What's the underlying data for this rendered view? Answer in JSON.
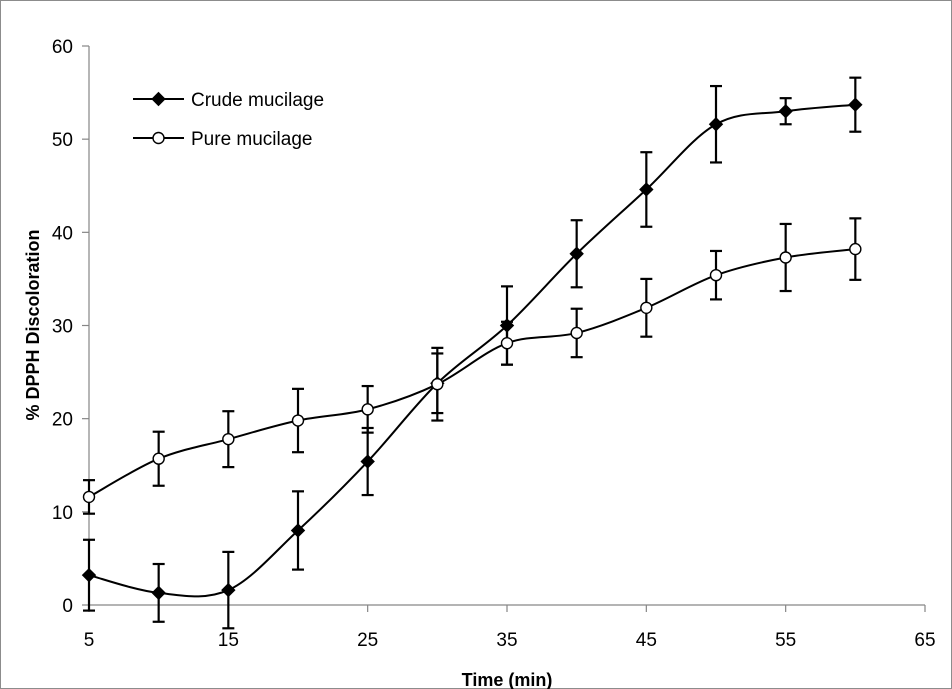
{
  "chart_data": {
    "type": "line",
    "xlabel": "Time (min)",
    "ylabel": "% DPPH Discoloration",
    "xlim": [
      5,
      65
    ],
    "ylim": [
      0,
      60
    ],
    "x_ticks": [
      "5",
      "15",
      "25",
      "35",
      "45",
      "55",
      "65"
    ],
    "y_ticks": [
      "0",
      "10",
      "20",
      "30",
      "40",
      "50",
      "60"
    ],
    "grid": false,
    "legend_position": "top-left",
    "series": [
      {
        "name": "Crude mucilage",
        "marker": "filled-diamond",
        "x": [
          5,
          10,
          15,
          20,
          25,
          30,
          35,
          40,
          45,
          50,
          55,
          60
        ],
        "values": [
          3.2,
          1.3,
          1.6,
          8.0,
          15.4,
          23.8,
          30.0,
          37.7,
          44.6,
          51.6,
          53.0,
          53.7
        ],
        "error": [
          3.8,
          3.1,
          4.1,
          4.2,
          3.6,
          3.2,
          4.2,
          3.6,
          4.0,
          4.1,
          1.4,
          2.9
        ]
      },
      {
        "name": "Pure mucilage",
        "marker": "open-circle",
        "x": [
          5,
          10,
          15,
          20,
          25,
          30,
          35,
          40,
          45,
          50,
          55,
          60
        ],
        "values": [
          11.6,
          15.7,
          17.8,
          19.8,
          21.0,
          23.7,
          28.1,
          29.2,
          31.9,
          35.4,
          37.3,
          38.2
        ],
        "error": [
          1.8,
          2.9,
          3.0,
          3.4,
          2.5,
          3.9,
          2.3,
          2.6,
          3.1,
          2.6,
          3.6,
          3.3
        ]
      }
    ]
  }
}
